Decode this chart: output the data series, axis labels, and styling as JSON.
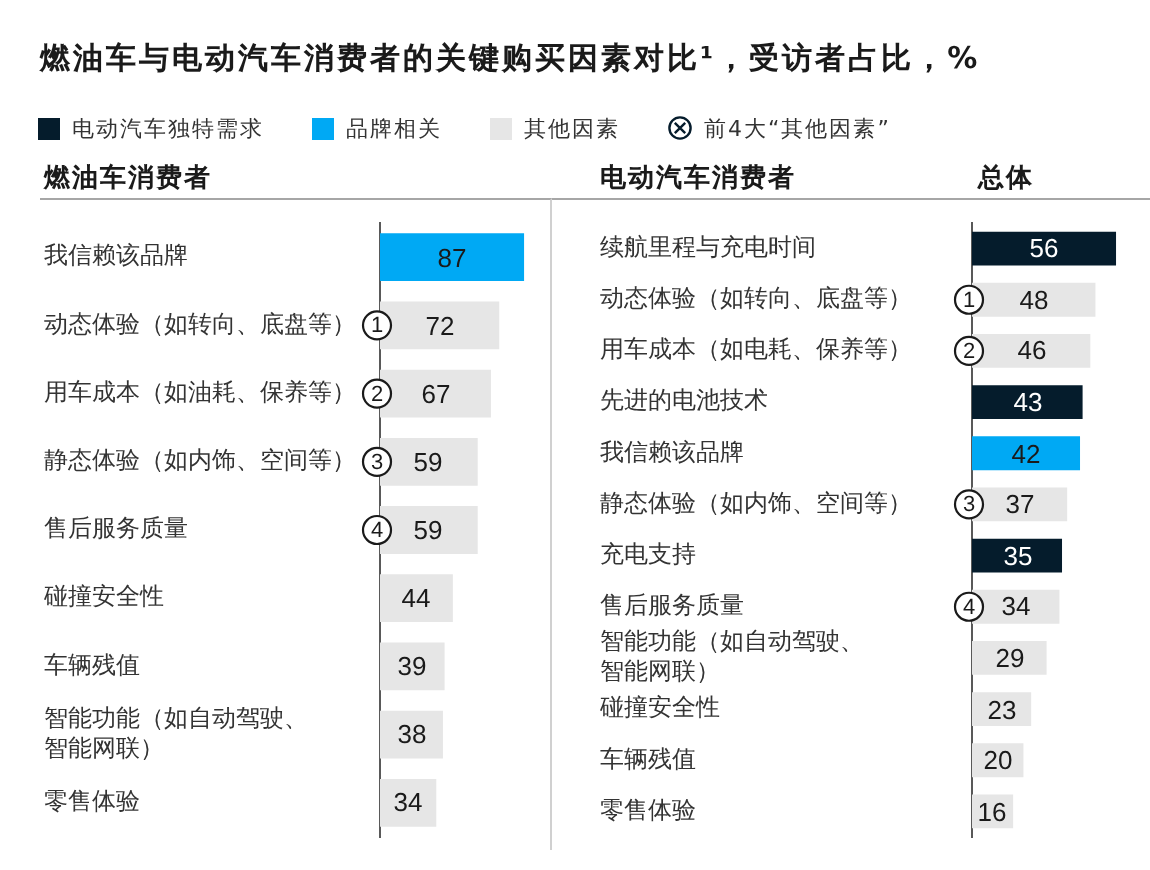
{
  "chart_data": [
    {
      "type": "bar",
      "orientation": "horizontal",
      "title": "燃油车与电动汽车消费者的关键购买因素对比¹，受访者占比，%",
      "ylabel": "燃油车消费者",
      "categories": [
        "我信赖该品牌",
        "动态体验（如转向、底盘等）",
        "用车成本（如油耗、保养等）",
        "静态体验（如内饰、空间等）",
        "售后服务质量",
        "碰撞安全性",
        "车辆残值",
        "智能功能（如自动驾驶、智能网联）",
        "零售体验"
      ],
      "series": [
        {
          "name": "电动汽车独特需求",
          "color": "#051c2c",
          "values": [
            null,
            null,
            null,
            null,
            null,
            null,
            null,
            null,
            null
          ]
        },
        {
          "name": "品牌相关",
          "color": "#00a9f4",
          "values": [
            87,
            null,
            null,
            null,
            null,
            null,
            null,
            null,
            null
          ]
        },
        {
          "name": "其他因素",
          "color": "#e6e6e6",
          "values": [
            null,
            72,
            67,
            59,
            59,
            44,
            39,
            38,
            34
          ]
        }
      ],
      "tick_labels": "y",
      "data_labels": true,
      "legend": "top left",
      "annotations": [
        "前4大“其他因素”",
        {
          "text": "1",
          "y": "动态体验（如转向、底盘等）"
        },
        {
          "text": "2",
          "y": "用车成本（如油耗、保养等）"
        },
        {
          "text": "3",
          "y": "静态体验（如内饰、空间等）"
        },
        {
          "text": "4",
          "y": "售后服务质量"
        }
      ]
    },
    {
      "type": "bar",
      "orientation": "horizontal",
      "ylabel": "电动汽车消费者",
      "xlabel": "总体",
      "categories": [
        "续航里程与充电时间",
        "动态体验（如转向、底盘等）",
        "用车成本（如电耗、保养等）",
        "先进的电池技术",
        "我信赖该品牌",
        "静态体验（如内饰、空间等）",
        "充电支持",
        "售后服务质量",
        "智能功能（如自动驾驶、智能网联）",
        "碰撞安全性",
        "车辆残值",
        "零售体验"
      ],
      "series": [
        {
          "color": "#051c2c",
          "values": [
            56,
            null,
            null,
            43,
            null,
            null,
            35,
            null,
            null,
            null,
            null,
            null
          ]
        },
        {
          "color": "#00a9f4",
          "values": [
            null,
            null,
            null,
            null,
            42,
            null,
            null,
            null,
            null,
            null,
            null,
            null
          ]
        },
        {
          "color": "#e6e6e6",
          "values": [
            null,
            48,
            46,
            null,
            null,
            37,
            null,
            34,
            29,
            23,
            20,
            16
          ]
        }
      ],
      "tick_labels": "y",
      "data_labels": true,
      "annotations": [
        {
          "text": "1",
          "y": "动态体验（如转向、底盘等）"
        },
        {
          "text": "2",
          "y": "用车成本（如电耗、保养等）"
        },
        {
          "text": "3",
          "y": "静态体验（如内饰、空间等）"
        },
        {
          "text": "4",
          "y": "售后服务质量"
        }
      ]
    }
  ]
}
